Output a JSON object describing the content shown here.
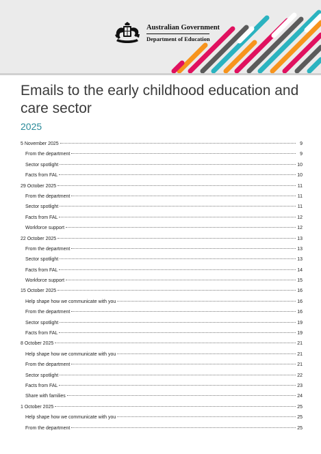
{
  "header": {
    "logo": {
      "line1": "Australian Government",
      "line2": "Department of Education"
    },
    "stripe_colors": [
      "#e0115f",
      "#f7941d",
      "#2bb3c0",
      "#5b5b5b",
      "#ffffff"
    ]
  },
  "document": {
    "title": "Emails to the early childhood education and care sector",
    "year": "2025"
  },
  "toc": [
    {
      "text": "5 November 2025",
      "page": "9",
      "level": 1
    },
    {
      "text": "From the department",
      "page": "9",
      "level": 2
    },
    {
      "text": "Sector spotlight",
      "page": "10",
      "level": 2
    },
    {
      "text": "Facts from FAL",
      "page": "10",
      "level": 2
    },
    {
      "text": "29 October 2025",
      "page": "11",
      "level": 1
    },
    {
      "text": "From the department",
      "page": "11",
      "level": 2
    },
    {
      "text": "Sector spotlight",
      "page": "11",
      "level": 2
    },
    {
      "text": "Facts from FAL",
      "page": "12",
      "level": 2
    },
    {
      "text": "Workforce support",
      "page": "12",
      "level": 2
    },
    {
      "text": "22 October 2025",
      "page": "13",
      "level": 1
    },
    {
      "text": "From the department",
      "page": "13",
      "level": 2
    },
    {
      "text": "Sector spotlight",
      "page": "13",
      "level": 2
    },
    {
      "text": "Facts from FAL",
      "page": "14",
      "level": 2
    },
    {
      "text": "Workforce support",
      "page": "15",
      "level": 2
    },
    {
      "text": "15 October 2025",
      "page": "16",
      "level": 1
    },
    {
      "text": "Help shape how we communicate with you",
      "page": "16",
      "level": 2
    },
    {
      "text": "From the department",
      "page": "16",
      "level": 2
    },
    {
      "text": "Sector spotlight",
      "page": "19",
      "level": 2
    },
    {
      "text": "Facts from FAL",
      "page": "19",
      "level": 2
    },
    {
      "text": "8 October 2025",
      "page": "21",
      "level": 1
    },
    {
      "text": "Help shape how we communicate with you",
      "page": "21",
      "level": 2
    },
    {
      "text": "From the department",
      "page": "21",
      "level": 2
    },
    {
      "text": "Sector spotlight",
      "page": "22",
      "level": 2
    },
    {
      "text": "Facts from FAL",
      "page": "23",
      "level": 2
    },
    {
      "text": "Share with families",
      "page": "24",
      "level": 2
    },
    {
      "text": "1 October 2025",
      "page": "25",
      "level": 1
    },
    {
      "text": "Help shape how we communicate with you",
      "page": "25",
      "level": 2
    },
    {
      "text": "From the department",
      "page": "25",
      "level": 2
    }
  ]
}
